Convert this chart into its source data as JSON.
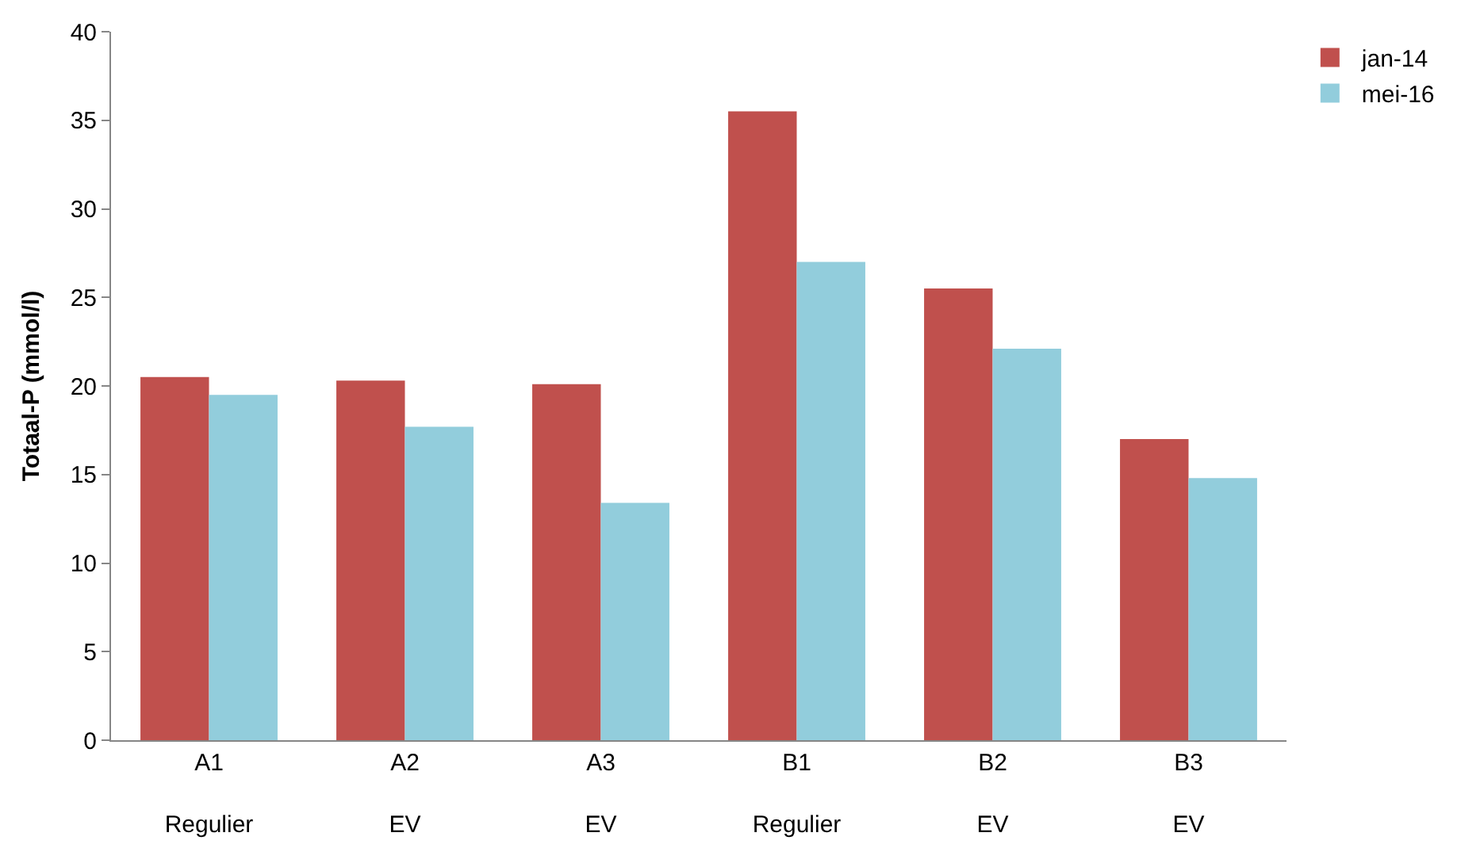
{
  "chart_data": {
    "type": "bar",
    "ylabel": "Totaal-P (mmol/l)",
    "categories": [
      "A1\nRegulier",
      "A2\nEV",
      "A3\nEV",
      "B1\nRegulier",
      "B2\nEV",
      "B3\nEV"
    ],
    "series": [
      {
        "name": "jan-14",
        "color": "#c0504d",
        "values": [
          20.5,
          20.3,
          20.1,
          35.5,
          25.5,
          17.0
        ]
      },
      {
        "name": "mei-16",
        "color": "#92cddc",
        "values": [
          19.5,
          17.7,
          13.4,
          27.0,
          22.1,
          14.8
        ]
      }
    ],
    "ylim": [
      0,
      40
    ],
    "yticks": [
      0,
      5,
      10,
      15,
      20,
      25,
      30,
      35,
      40
    ],
    "legend": "top right"
  }
}
